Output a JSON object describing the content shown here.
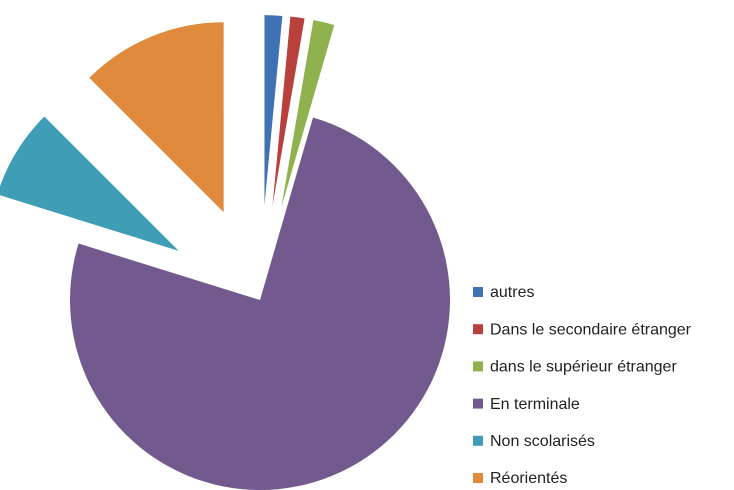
{
  "chart_data": {
    "type": "pie",
    "categories": [
      "autres",
      "Dans le secondaire étranger",
      "dans le supérieur étranger",
      "En terminale",
      "Non scolarisés",
      "Réorientés"
    ],
    "values": [
      1.5,
      1.2,
      1.8,
      75.3,
      7.7,
      12.5
    ],
    "colors": [
      "#3f72b5",
      "#b8403d",
      "#8fb24e",
      "#725a8f",
      "#3f9db5",
      "#e08a3e"
    ],
    "legend": "right"
  }
}
